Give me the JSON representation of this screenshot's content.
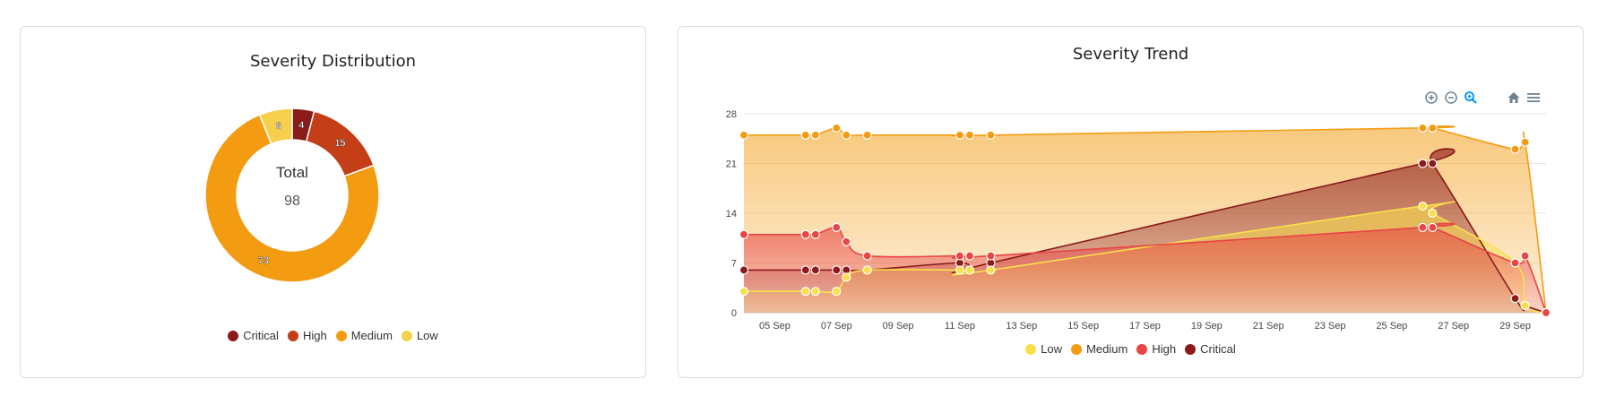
{
  "donut_card": {
    "title": "Severity Distribution",
    "center_label": "Total",
    "center_value": "98"
  },
  "trend_card": {
    "title": "Severity Trend"
  },
  "toolbar": {
    "icons": [
      "zoom-in-icon",
      "zoom-out-icon",
      "zoom-select-icon",
      "home-icon",
      "menu-icon"
    ]
  },
  "colors": {
    "Critical": "#8b1a1a",
    "High": "#c43e17",
    "Medium": "#f39c12",
    "Low": "#f7d04b",
    "TrendLow": "#f9e04b",
    "TrendMedium": "#f39c12",
    "TrendHigh": "#e84545",
    "TrendCritical": "#8b1a1a"
  },
  "chart_data": [
    {
      "type": "pie",
      "title": "Severity Distribution",
      "categories": [
        "Critical",
        "High",
        "Medium",
        "Low"
      ],
      "values": [
        4,
        15,
        73,
        6
      ],
      "total": 98,
      "legend": "bottom"
    },
    {
      "type": "area",
      "title": "Severity Trend",
      "x_tick_labels": [
        "05 Sep",
        "07 Sep",
        "09 Sep",
        "11 Sep",
        "13 Sep",
        "15 Sep",
        "17 Sep",
        "19 Sep",
        "21 Sep",
        "23 Sep",
        "25 Sep",
        "27 Sep",
        "29 Sep"
      ],
      "y_ticks": [
        0,
        7,
        14,
        21,
        28
      ],
      "ylim": [
        0,
        28
      ],
      "xlim": [
        "2025-09-04",
        "2025-09-30"
      ],
      "grid": true,
      "legend": "bottom",
      "x": [
        "2025-09-04",
        "2025-09-06",
        "2025-09-06",
        "2025-09-07",
        "2025-09-07",
        "2025-09-08",
        "2025-09-11",
        "2025-09-11",
        "2025-09-12",
        "2025-09-26",
        "2025-09-26",
        "2025-09-29",
        "2025-09-29",
        "2025-09-30"
      ],
      "series": [
        {
          "name": "Low",
          "values": [
            3,
            3,
            3,
            3,
            5,
            6,
            6,
            6,
            6,
            15,
            14,
            7,
            1,
            0
          ]
        },
        {
          "name": "Medium",
          "values": [
            25,
            25,
            25,
            26,
            25,
            25,
            25,
            25,
            25,
            26,
            26,
            23,
            24,
            0
          ]
        },
        {
          "name": "High",
          "values": [
            11,
            11,
            11,
            12,
            10,
            8,
            8,
            8,
            8,
            12,
            12,
            7,
            8,
            0
          ]
        },
        {
          "name": "Critical",
          "values": [
            6,
            6,
            6,
            6,
            6,
            6,
            7,
            6,
            7,
            21,
            21,
            2,
            1,
            0
          ]
        }
      ]
    }
  ]
}
